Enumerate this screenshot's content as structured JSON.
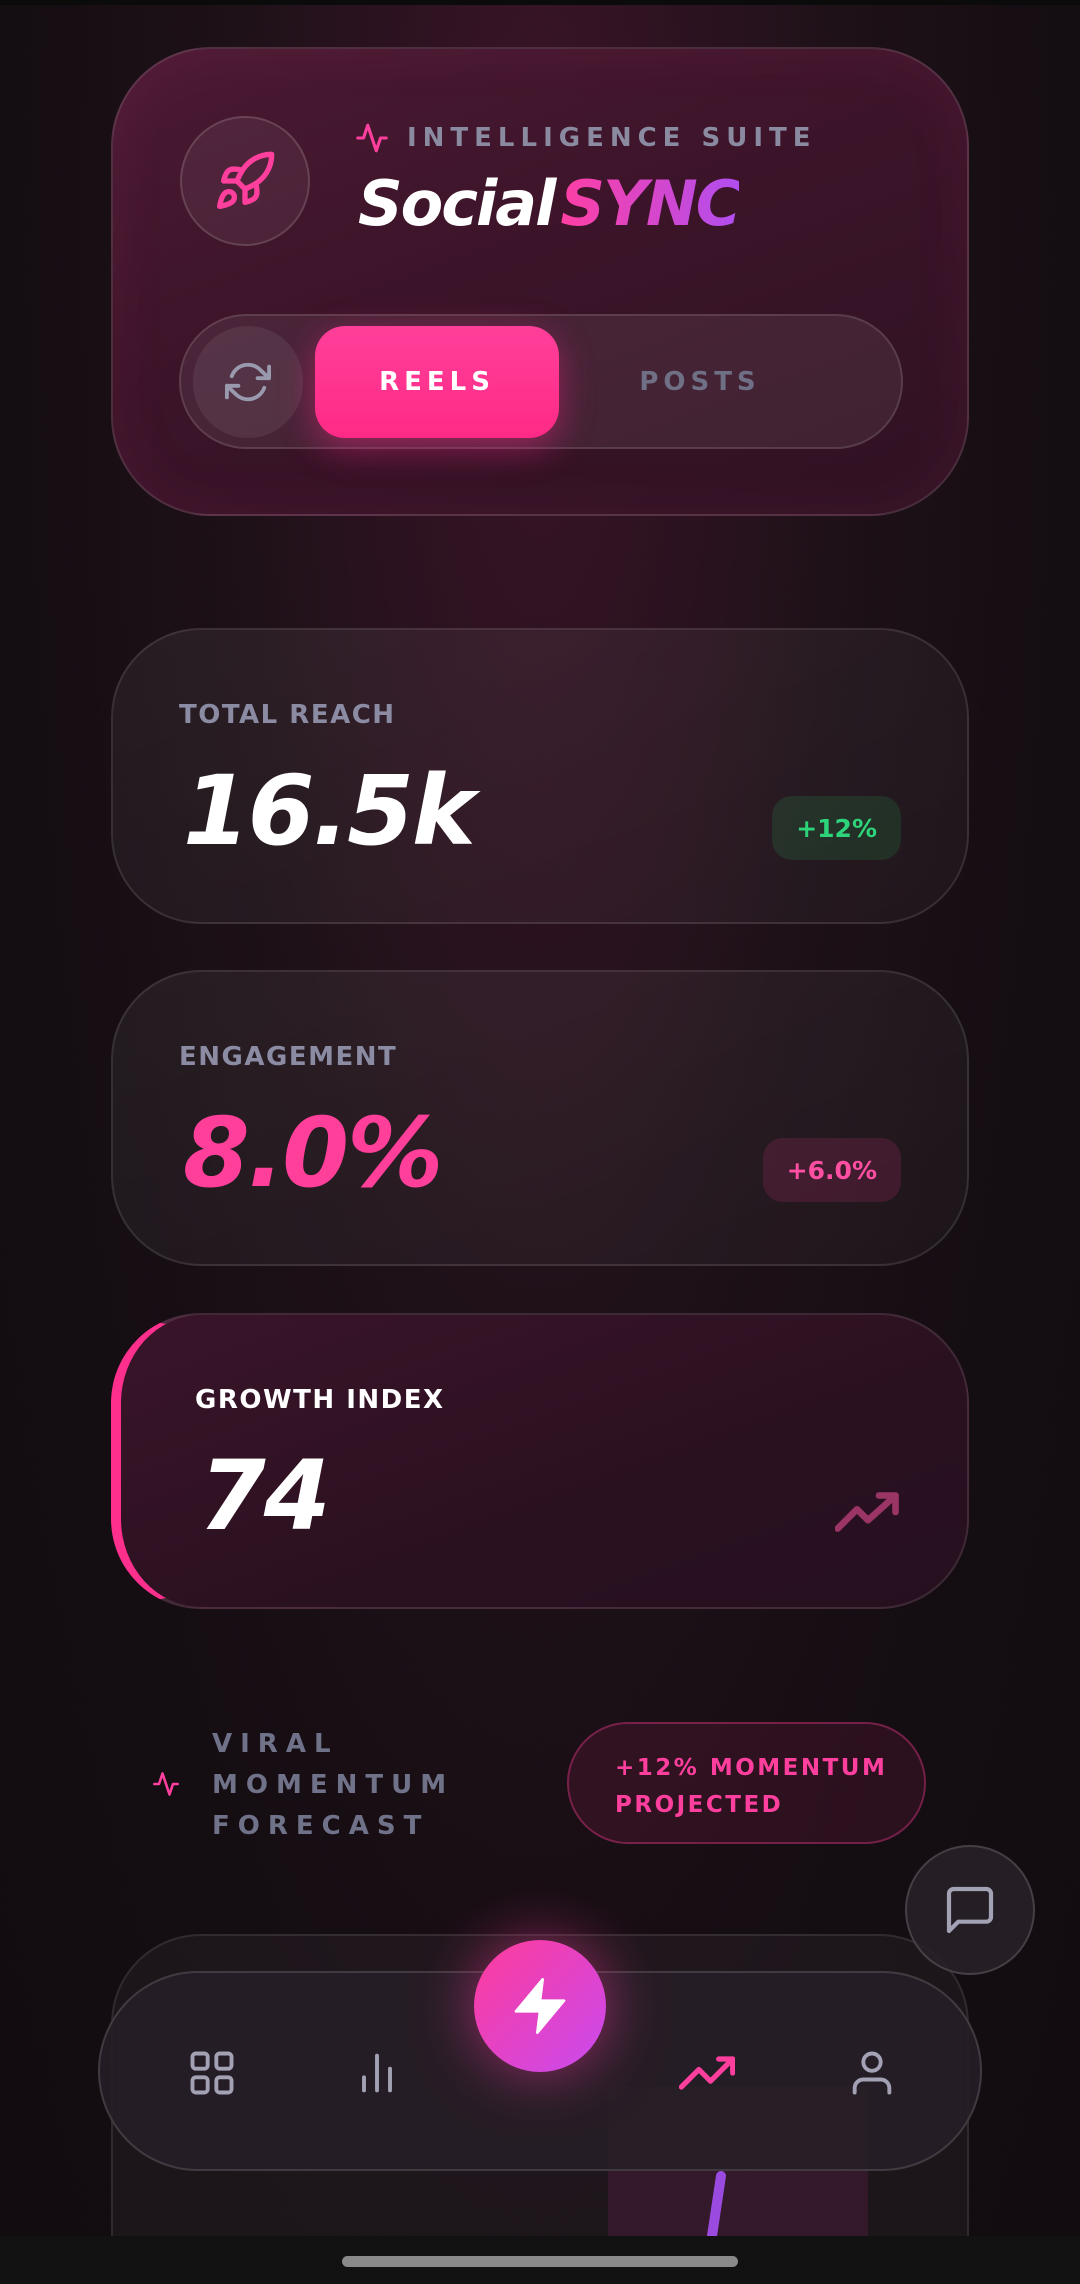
{
  "header": {
    "suite_label": "INTELLIGENCE SUITE",
    "brand_part1": "Social",
    "brand_part2": "SYNC",
    "toggle": {
      "reels_label": "REELS",
      "posts_label": "POSTS",
      "selected": "REELS"
    }
  },
  "metrics": [
    {
      "label": "TOTAL REACH",
      "value": "16.5k",
      "change": "+12%",
      "tone": "green"
    },
    {
      "label": "ENGAGEMENT",
      "value": "8.0%",
      "change": "+6.0%",
      "tone": "pink"
    }
  ],
  "growth": {
    "label": "GROWTH INDEX",
    "value": "74"
  },
  "forecast": {
    "line1": "VIRAL",
    "line2": "MOMENTUM",
    "line3": "FORECAST",
    "badge_line1": "+12% MOMENTUM",
    "badge_line2": "PROJECTED"
  },
  "nav": {
    "items": [
      "grid-icon",
      "bar-chart-icon",
      "bolt-icon",
      "trending-up-icon",
      "user-icon"
    ],
    "active": "trending-up-icon"
  },
  "colors": {
    "accent": "#ff2f8e",
    "accent_purple": "#c84af0",
    "positive": "#2ed47a",
    "muted": "#8b8ca4"
  }
}
